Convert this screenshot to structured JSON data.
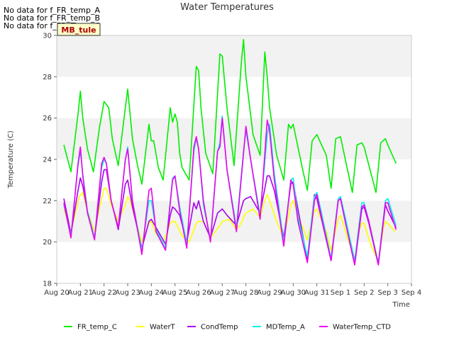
{
  "notes": [
    "No data for f_FR_temp_A",
    "No data for f_FR_temp_B",
    "No data for f_FD_Temp_1"
  ],
  "badge": "MB_tule",
  "chart_data": {
    "type": "line",
    "title": "Water Temperatures",
    "xlabel": "Time",
    "ylabel": "Temperature (C)",
    "ylim": [
      18,
      30
    ],
    "xlim": [
      0,
      15
    ],
    "yticks": [
      18,
      20,
      22,
      24,
      26,
      28,
      30
    ],
    "xtick_labels": [
      "Aug 20",
      "Aug 21",
      "Aug 22",
      "Aug 23",
      "Aug 24",
      "Aug 25",
      "Aug 26",
      "Aug 27",
      "Aug 28",
      "Aug 29",
      "Aug 30",
      "Aug 31",
      "Sep 1",
      "Sep 2",
      "Sep 3",
      "Sep 4"
    ],
    "grid": "horizontal-bands",
    "legend_position": "bottom",
    "series": [
      {
        "name": "FR_temp_C",
        "color": "#00ee00",
        "x": [
          0.3,
          0.6,
          0.9,
          1.0,
          1.1,
          1.3,
          1.55,
          1.8,
          2.0,
          2.2,
          2.35,
          2.6,
          2.9,
          3.0,
          3.2,
          3.4,
          3.6,
          3.9,
          4.0,
          4.1,
          4.3,
          4.5,
          4.8,
          4.9,
          5.0,
          5.1,
          5.2,
          5.3,
          5.6,
          5.9,
          6.0,
          6.1,
          6.3,
          6.6,
          6.9,
          7.0,
          7.2,
          7.5,
          7.8,
          7.9,
          8.0,
          8.3,
          8.6,
          8.8,
          8.9,
          9.0,
          9.3,
          9.6,
          9.8,
          9.9,
          10.0,
          10.4,
          10.6,
          10.8,
          11.0,
          11.4,
          11.6,
          11.8,
          12.0,
          12.5,
          12.7,
          12.9,
          13.0,
          13.5,
          13.7,
          13.9,
          14.0,
          14.35
        ],
        "y": [
          24.7,
          23.4,
          26.2,
          27.3,
          26.0,
          24.5,
          23.4,
          25.5,
          26.8,
          26.5,
          25.0,
          23.7,
          26.5,
          27.4,
          25.0,
          23.8,
          22.8,
          25.7,
          24.9,
          24.9,
          23.6,
          23.0,
          26.5,
          25.8,
          26.2,
          25.8,
          24.3,
          23.6,
          23.0,
          28.5,
          28.3,
          26.5,
          24.3,
          23.3,
          29.1,
          29.0,
          26.5,
          23.7,
          28.6,
          29.8,
          28.0,
          25.2,
          24.2,
          29.2,
          28.0,
          26.5,
          24.2,
          23.0,
          25.7,
          25.5,
          25.7,
          23.5,
          22.5,
          24.9,
          25.2,
          24.2,
          22.6,
          25.0,
          25.1,
          22.4,
          24.7,
          24.8,
          24.6,
          22.4,
          24.8,
          25.0,
          24.7,
          23.8
        ]
      },
      {
        "name": "WaterT",
        "color": "#ffff00",
        "x": [
          0.3,
          0.6,
          0.95,
          1.1,
          1.3,
          1.6,
          1.8,
          2.0,
          2.1,
          2.3,
          2.6,
          2.9,
          3.0,
          3.1,
          3.3,
          3.6,
          3.9,
          4.0,
          4.2,
          4.5,
          4.8,
          4.9,
          5.0,
          5.3,
          5.6,
          5.9,
          6.0,
          6.2,
          6.5,
          6.9,
          7.0,
          7.3,
          7.6,
          7.8,
          7.9,
          8.0,
          8.3,
          8.6,
          8.8,
          8.9,
          9.0,
          9.3,
          9.6,
          9.9,
          10.0,
          10.3,
          10.6,
          10.9,
          11.0,
          11.4,
          11.6,
          11.9,
          12.0,
          12.3,
          12.6,
          12.8,
          12.9,
          13.0,
          13.3,
          13.6,
          13.8,
          13.9,
          14.0,
          14.3
        ],
        "y": [
          21.6,
          20.5,
          22.2,
          22.4,
          21.5,
          20.5,
          21.6,
          22.6,
          22.6,
          21.8,
          21.0,
          21.8,
          22.2,
          22.0,
          21.2,
          20.0,
          20.9,
          21.0,
          20.4,
          20.0,
          20.9,
          21.0,
          21.0,
          20.3,
          20.0,
          20.9,
          21.0,
          21.0,
          20.2,
          20.8,
          21.0,
          21.1,
          20.6,
          20.9,
          21.2,
          21.4,
          21.6,
          21.2,
          22.0,
          22.3,
          22.0,
          21.0,
          20.2,
          21.8,
          22.0,
          21.0,
          20.1,
          21.5,
          21.6,
          20.5,
          19.6,
          21.1,
          21.3,
          20.2,
          19.2,
          20.6,
          20.9,
          20.9,
          19.8,
          19.1,
          20.6,
          21.0,
          20.9,
          20.5
        ]
      },
      {
        "name": "CondTemp",
        "color": "#aa00ee",
        "x": [
          0.3,
          0.6,
          0.9,
          1.0,
          1.1,
          1.3,
          1.6,
          1.9,
          2.0,
          2.1,
          2.3,
          2.6,
          2.9,
          3.0,
          3.2,
          3.6,
          3.9,
          4.0,
          4.2,
          4.6,
          4.8,
          4.9,
          5.0,
          5.2,
          5.5,
          5.8,
          5.9,
          6.0,
          6.2,
          6.5,
          6.8,
          7.0,
          7.2,
          7.6,
          7.9,
          8.0,
          8.2,
          8.6,
          8.9,
          9.0,
          9.2,
          9.6,
          9.9,
          10.0,
          10.2,
          10.6,
          10.9,
          11.0,
          11.2,
          11.6,
          11.9,
          12.0,
          12.2,
          12.6,
          12.9,
          13.0,
          13.2,
          13.6,
          13.9,
          14.0,
          14.35
        ],
        "y": [
          22.1,
          20.4,
          22.5,
          23.1,
          22.7,
          21.5,
          20.2,
          22.9,
          23.5,
          23.5,
          22.0,
          20.6,
          22.8,
          23.0,
          21.7,
          19.7,
          21.0,
          21.1,
          20.7,
          19.9,
          21.3,
          21.7,
          21.6,
          21.3,
          20.0,
          21.9,
          21.6,
          22.0,
          21.0,
          20.2,
          21.4,
          21.6,
          21.3,
          20.8,
          22.0,
          22.1,
          22.2,
          21.4,
          23.2,
          23.2,
          22.5,
          20.2,
          22.8,
          22.9,
          21.6,
          19.1,
          22.3,
          22.1,
          21.1,
          19.1,
          22.0,
          22.1,
          21.0,
          18.9,
          21.6,
          21.7,
          20.9,
          18.9,
          21.8,
          21.5,
          20.7
        ]
      },
      {
        "name": "MDTemp_A",
        "color": "#00eeee",
        "x": [
          0.3,
          0.6,
          0.9,
          1.0,
          1.1,
          1.3,
          1.6,
          1.9,
          2.0,
          2.1,
          2.3,
          2.6,
          2.9,
          3.0,
          3.2,
          3.6,
          3.9,
          4.0,
          4.2,
          4.6,
          4.9,
          5.0,
          5.2,
          5.5,
          5.8,
          5.9,
          6.0,
          6.2,
          6.5,
          6.8,
          6.9,
          7.0,
          7.2,
          7.6,
          7.9,
          8.0,
          8.2,
          8.6,
          8.9,
          9.0,
          9.2,
          9.6,
          9.9,
          10.0,
          10.2,
          10.6,
          10.9,
          11.0,
          11.2,
          11.6,
          11.9,
          12.0,
          12.2,
          12.6,
          12.9,
          13.0,
          13.2,
          13.6,
          13.9,
          14.0,
          14.35
        ],
        "y": [
          21.8,
          20.3,
          23.7,
          24.4,
          23.3,
          21.5,
          20.2,
          23.6,
          24.0,
          23.8,
          22.0,
          20.7,
          24.0,
          24.6,
          22.0,
          19.6,
          22.0,
          22.0,
          20.6,
          19.7,
          23.1,
          23.2,
          21.7,
          19.9,
          24.4,
          25.0,
          24.5,
          21.8,
          20.1,
          24.4,
          24.8,
          26.1,
          23.5,
          20.7,
          24.4,
          25.4,
          24.0,
          21.3,
          25.2,
          25.7,
          23.3,
          20.0,
          23.0,
          23.1,
          21.2,
          19.3,
          22.2,
          22.4,
          21.4,
          19.2,
          22.1,
          22.2,
          21.2,
          19.1,
          21.9,
          21.9,
          21.0,
          19.0,
          22.0,
          22.1,
          20.8
        ]
      },
      {
        "name": "WaterTemp_CTD",
        "color": "#ee00ee",
        "x": [
          0.3,
          0.6,
          0.9,
          1.0,
          1.1,
          1.3,
          1.6,
          1.9,
          2.0,
          2.1,
          2.3,
          2.6,
          2.9,
          3.0,
          3.2,
          3.6,
          3.9,
          4.0,
          4.2,
          4.6,
          4.9,
          5.0,
          5.2,
          5.5,
          5.8,
          5.9,
          6.0,
          6.2,
          6.5,
          6.8,
          6.9,
          7.0,
          7.2,
          7.6,
          7.9,
          8.0,
          8.2,
          8.6,
          8.9,
          9.0,
          9.2,
          9.6,
          9.9,
          10.0,
          10.2,
          10.6,
          10.9,
          11.0,
          11.2,
          11.6,
          11.9,
          12.0,
          12.2,
          12.6,
          12.9,
          13.0,
          13.2,
          13.6,
          13.9,
          14.0,
          14.35
        ],
        "y": [
          21.9,
          20.2,
          23.8,
          24.6,
          23.2,
          21.4,
          20.1,
          23.8,
          24.1,
          23.8,
          22.0,
          20.7,
          24.0,
          24.5,
          22.0,
          19.4,
          22.5,
          22.6,
          20.5,
          19.6,
          23.0,
          23.2,
          21.5,
          19.7,
          24.6,
          25.1,
          24.5,
          22.0,
          20.0,
          24.4,
          24.6,
          26.0,
          23.5,
          20.5,
          24.3,
          25.6,
          24.0,
          21.1,
          25.9,
          25.4,
          23.0,
          19.8,
          23.0,
          22.8,
          21.0,
          19.0,
          22.0,
          22.3,
          21.2,
          19.1,
          22.0,
          22.1,
          21.0,
          18.9,
          21.7,
          21.8,
          21.0,
          18.9,
          21.9,
          21.9,
          20.6
        ]
      }
    ]
  }
}
